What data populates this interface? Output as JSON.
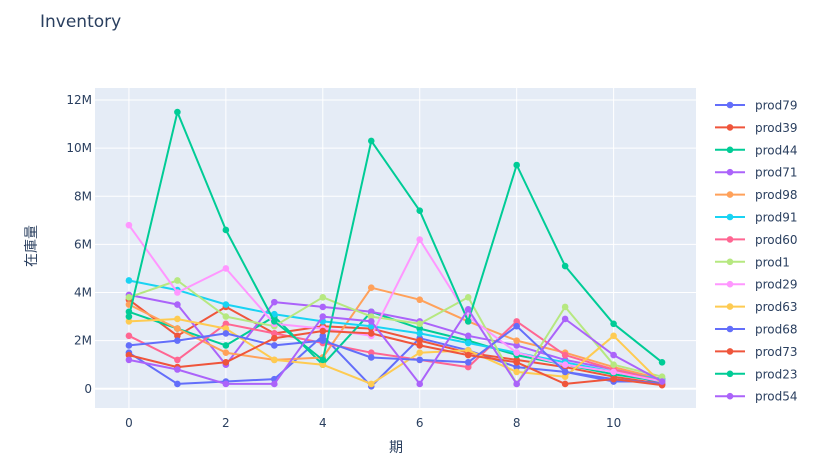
{
  "chart_data": {
    "type": "line",
    "title": "Inventory",
    "xlabel": "期",
    "ylabel": "在庫量",
    "xlim": [
      -0.7,
      11.7
    ],
    "ylim": [
      -800000,
      12500000
    ],
    "x_ticks": [
      0,
      2,
      4,
      6,
      8,
      10
    ],
    "y_ticks": [
      0,
      2000000,
      4000000,
      6000000,
      8000000,
      10000000,
      12000000
    ],
    "y_tick_labels": [
      "0",
      "2M",
      "4M",
      "6M",
      "8M",
      "10M",
      "12M"
    ],
    "grid": true,
    "legend_position": "right",
    "x": [
      0,
      1,
      2,
      3,
      4,
      5,
      6,
      7,
      8,
      9,
      10,
      11
    ],
    "series": [
      {
        "name": "prod79",
        "color": "#636efa",
        "values": [
          1500000,
          200000,
          300000,
          400000,
          2200000,
          100000,
          2100000,
          1600000,
          900000,
          700000,
          300000,
          300000
        ]
      },
      {
        "name": "prod39",
        "color": "#EF553B",
        "values": [
          3700000,
          2200000,
          3400000,
          2300000,
          2600000,
          2500000,
          2000000,
          1500000,
          1200000,
          900000,
          500000,
          200000
        ]
      },
      {
        "name": "prod44",
        "color": "#00cc96",
        "values": [
          3200000,
          2500000,
          1800000,
          3000000,
          1000000,
          3200000,
          2500000,
          2000000,
          1400000,
          1000000,
          600000,
          300000
        ]
      },
      {
        "name": "prod71",
        "color": "#ab63fa",
        "values": [
          3900000,
          3500000,
          1000000,
          3600000,
          3400000,
          3200000,
          2800000,
          2200000,
          1800000,
          1200000,
          800000,
          400000
        ]
      },
      {
        "name": "prod98",
        "color": "#FFA15A",
        "values": [
          3500000,
          2500000,
          1500000,
          1200000,
          1300000,
          4200000,
          3700000,
          2800000,
          2000000,
          1500000,
          900000,
          400000
        ]
      },
      {
        "name": "prod91",
        "color": "#19d3f3",
        "values": [
          4500000,
          4100000,
          3500000,
          3100000,
          2800000,
          2600000,
          2300000,
          1900000,
          1500000,
          1100000,
          700000,
          400000
        ]
      },
      {
        "name": "prod60",
        "color": "#FF6692",
        "values": [
          2200000,
          1200000,
          2700000,
          2300000,
          1900000,
          1500000,
          1200000,
          900000,
          2800000,
          1400000,
          800000,
          300000
        ]
      },
      {
        "name": "prod1",
        "color": "#B6E880",
        "values": [
          3800000,
          4500000,
          3000000,
          2600000,
          3800000,
          3000000,
          2700000,
          3800000,
          200000,
          3400000,
          1000000,
          500000
        ]
      },
      {
        "name": "prod29",
        "color": "#FF97FF",
        "values": [
          6800000,
          4000000,
          5000000,
          2700000,
          2500000,
          2200000,
          6200000,
          3000000,
          1500000,
          1000000,
          700000,
          300000
        ]
      },
      {
        "name": "prod63",
        "color": "#FECB52",
        "values": [
          2800000,
          2900000,
          2500000,
          1200000,
          1000000,
          200000,
          1500000,
          1600000,
          700000,
          500000,
          2200000,
          200000
        ]
      },
      {
        "name": "prod68",
        "color": "#636efa",
        "values": [
          1800000,
          2000000,
          2300000,
          1800000,
          2000000,
          1300000,
          1200000,
          1100000,
          2600000,
          700000,
          400000,
          200000
        ]
      },
      {
        "name": "prod73",
        "color": "#EF553B",
        "values": [
          1400000,
          900000,
          1100000,
          2100000,
          2400000,
          2300000,
          1800000,
          1400000,
          1100000,
          200000,
          400000,
          150000
        ]
      },
      {
        "name": "prod23",
        "color": "#00cc96",
        "values": [
          3000000,
          11500000,
          6600000,
          2800000,
          1200000,
          10300000,
          7400000,
          2800000,
          9300000,
          5100000,
          2700000,
          1100000
        ]
      },
      {
        "name": "prod54",
        "color": "#ab63fa",
        "values": [
          1200000,
          800000,
          200000,
          200000,
          3000000,
          2800000,
          200000,
          3300000,
          200000,
          2900000,
          1400000,
          300000
        ]
      }
    ]
  }
}
